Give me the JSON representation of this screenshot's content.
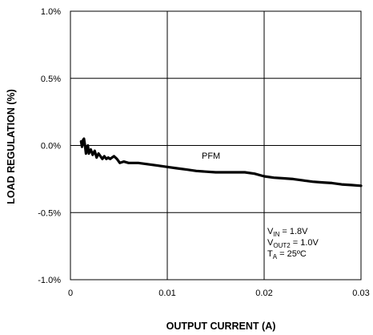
{
  "chart_data": {
    "type": "line",
    "xlabel": "OUTPUT CURRENT (A)",
    "ylabel": "LOAD REGULATION (%)",
    "xlim": [
      0,
      0.03
    ],
    "ylim": [
      -1.0,
      1.0
    ],
    "x_ticks": [
      0,
      0.01,
      0.02,
      0.03
    ],
    "x_tick_labels": [
      "0",
      "0.01",
      "0.02",
      "0.03"
    ],
    "y_ticks": [
      1.0,
      0.5,
      0.0,
      -0.5,
      -1.0
    ],
    "y_tick_labels": [
      "1.0%",
      "0.5%",
      "0.0%",
      "-0.5%",
      "-1.0%"
    ],
    "grid": true,
    "series": [
      {
        "name": "PFM",
        "color": "#000000",
        "x": [
          0.0011,
          0.0012,
          0.0013,
          0.0014,
          0.0015,
          0.0016,
          0.0017,
          0.0018,
          0.0019,
          0.002,
          0.0021,
          0.0023,
          0.0025,
          0.0027,
          0.0029,
          0.0031,
          0.0033,
          0.0035,
          0.0037,
          0.0039,
          0.0041,
          0.0043,
          0.0045,
          0.0048,
          0.0051,
          0.0055,
          0.006,
          0.007,
          0.008,
          0.009,
          0.01,
          0.011,
          0.012,
          0.013,
          0.014,
          0.015,
          0.016,
          0.017,
          0.018,
          0.019,
          0.02,
          0.021,
          0.022,
          0.023,
          0.024,
          0.025,
          0.026,
          0.027,
          0.028,
          0.029,
          0.03
        ],
        "y": [
          0.03,
          -0.01,
          0.04,
          0.05,
          0.0,
          -0.06,
          -0.02,
          0.0,
          -0.06,
          -0.04,
          -0.03,
          -0.07,
          -0.04,
          -0.09,
          -0.06,
          -0.08,
          -0.1,
          -0.08,
          -0.1,
          -0.09,
          -0.1,
          -0.09,
          -0.08,
          -0.1,
          -0.13,
          -0.12,
          -0.13,
          -0.13,
          -0.14,
          -0.15,
          -0.16,
          -0.17,
          -0.18,
          -0.19,
          -0.195,
          -0.2,
          -0.2,
          -0.2,
          -0.2,
          -0.21,
          -0.23,
          -0.24,
          -0.245,
          -0.25,
          -0.26,
          -0.27,
          -0.275,
          -0.28,
          -0.29,
          -0.295,
          -0.3
        ]
      }
    ],
    "series_label": "PFM",
    "conditions": [
      {
        "main": "V",
        "sub": "IN",
        "rest": " = 1.8V"
      },
      {
        "main": "V",
        "sub": "OUT2",
        "rest": " = 1.0V"
      },
      {
        "main": "T",
        "sub": "A",
        "rest": " = 25ºC"
      }
    ]
  }
}
